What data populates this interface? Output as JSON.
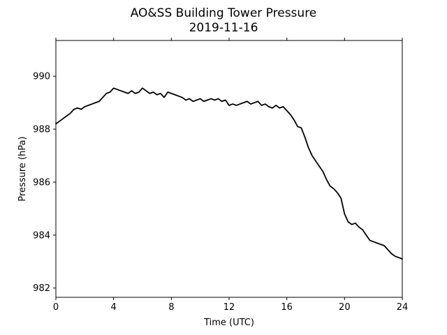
{
  "chart_data": {
    "type": "line",
    "title": "AO&SS Building Tower Pressure",
    "subtitle": "2019-11-16",
    "xlabel": "Time (UTC)",
    "ylabel": "Pressure (hPa)",
    "xlim": [
      0,
      24
    ],
    "ylim": [
      981.65,
      991.35
    ],
    "x_ticks": [
      0,
      4,
      8,
      12,
      16,
      20,
      24
    ],
    "y_ticks": [
      982,
      984,
      986,
      988,
      990
    ],
    "x_tick_labels": [
      "0",
      "4",
      "8",
      "12",
      "16",
      "20",
      "24"
    ],
    "y_tick_labels": [
      "982",
      "984",
      "986",
      "988",
      "990"
    ],
    "grid": false,
    "legend": "none",
    "series": [
      {
        "color": "#000000",
        "x": [
          0,
          0.25,
          0.5,
          0.75,
          1.0,
          1.25,
          1.5,
          1.75,
          2.0,
          2.25,
          2.5,
          2.75,
          3.0,
          3.25,
          3.5,
          3.75,
          4.0,
          4.25,
          4.5,
          4.75,
          5.0,
          5.25,
          5.5,
          5.75,
          6.0,
          6.25,
          6.5,
          6.75,
          7.0,
          7.25,
          7.5,
          7.75,
          8.0,
          8.25,
          8.5,
          8.75,
          9.0,
          9.25,
          9.5,
          9.75,
          10.0,
          10.25,
          10.5,
          10.75,
          11.0,
          11.25,
          11.5,
          11.75,
          12.0,
          12.25,
          12.5,
          12.75,
          13.0,
          13.25,
          13.5,
          13.75,
          14.0,
          14.25,
          14.5,
          14.75,
          15.0,
          15.25,
          15.5,
          15.75,
          16.0,
          16.25,
          16.5,
          16.75,
          17.0,
          17.25,
          17.5,
          17.75,
          18.0,
          18.25,
          18.5,
          18.75,
          19.0,
          19.25,
          19.5,
          19.75,
          20.0,
          20.25,
          20.5,
          20.75,
          21.0,
          21.25,
          21.5,
          21.75,
          22.0,
          22.25,
          22.5,
          22.75,
          23.0,
          23.25,
          23.5,
          23.75,
          24.0
        ],
        "y": [
          988.2,
          988.3,
          988.4,
          988.5,
          988.6,
          988.75,
          988.8,
          988.75,
          988.85,
          988.9,
          988.95,
          989.0,
          989.05,
          989.2,
          989.35,
          989.4,
          989.55,
          989.5,
          989.45,
          989.4,
          989.35,
          989.45,
          989.35,
          989.4,
          989.55,
          989.45,
          989.35,
          989.4,
          989.3,
          989.35,
          989.2,
          989.4,
          989.35,
          989.3,
          989.25,
          989.2,
          989.1,
          989.15,
          989.05,
          989.1,
          989.15,
          989.05,
          989.1,
          989.15,
          989.1,
          989.15,
          989.05,
          989.1,
          988.9,
          988.95,
          988.9,
          988.95,
          989.0,
          989.05,
          988.95,
          989.0,
          989.05,
          988.9,
          988.95,
          988.85,
          988.8,
          988.9,
          988.8,
          988.85,
          988.7,
          988.55,
          988.35,
          988.1,
          988.05,
          987.7,
          987.3,
          987.0,
          986.8,
          986.6,
          986.4,
          986.1,
          985.85,
          985.75,
          985.6,
          985.4,
          984.8,
          984.5,
          984.4,
          984.45,
          984.3,
          984.2,
          984.0,
          983.8,
          983.75,
          983.7,
          983.65,
          983.6,
          983.45,
          983.3,
          983.2,
          983.15,
          983.1
        ]
      }
    ]
  }
}
